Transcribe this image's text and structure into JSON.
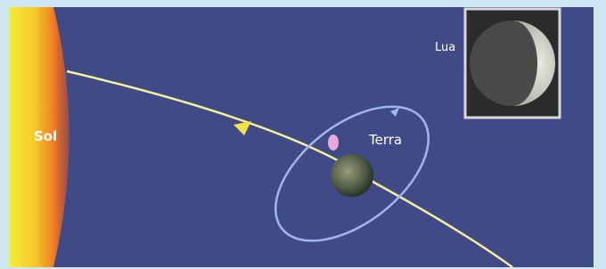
{
  "labels": {
    "sun": "Sol",
    "earth": "Terra",
    "moon": "Lua"
  }
}
